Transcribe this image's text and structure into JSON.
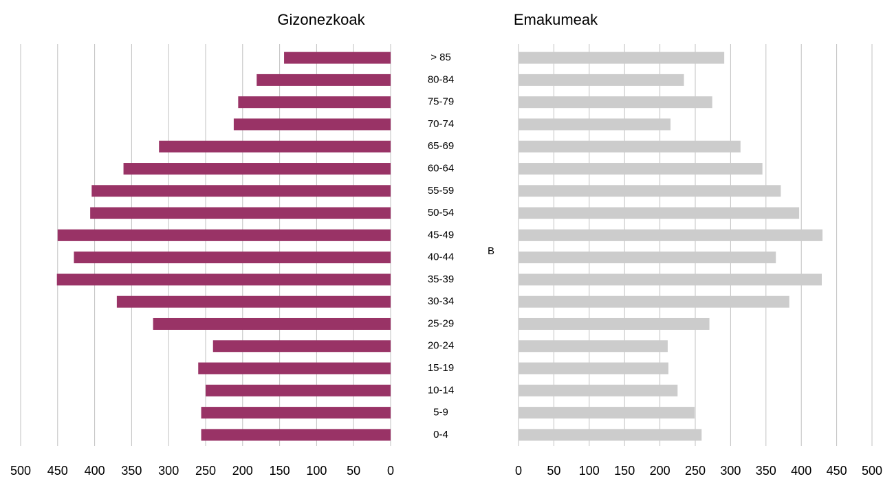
{
  "chart_data": [
    {
      "type": "bar",
      "orientation": "horizontal",
      "title": "Gizonezkoak",
      "xaxis_reversed": true,
      "categories": [
        "0-4",
        "5-9",
        "10-14",
        "15-19",
        "20-24",
        "25-29",
        "30-34",
        "35-39",
        "40-44",
        "45-49",
        "50-54",
        "55-59",
        "60-64",
        "65-69",
        "70-74",
        "75-79",
        "80-84",
        "> 85"
      ],
      "values": [
        256,
        256,
        250,
        260,
        240,
        321,
        370,
        451,
        428,
        450,
        406,
        404,
        361,
        313,
        212,
        206,
        181,
        144
      ],
      "color": "#993366",
      "xlim": [
        0,
        500
      ],
      "xticks": [
        0,
        50,
        100,
        150,
        200,
        250,
        300,
        350,
        400,
        450,
        500
      ],
      "grid": true
    },
    {
      "type": "bar",
      "orientation": "horizontal",
      "title": "Emakumeak",
      "annotation": "B",
      "values": [
        259,
        249,
        225,
        212,
        211,
        270,
        383,
        429,
        364,
        430,
        397,
        371,
        345,
        314,
        215,
        274,
        234,
        291
      ],
      "color": "#cccccc",
      "xlim": [
        0,
        500
      ],
      "xticks": [
        0,
        50,
        100,
        150,
        200,
        250,
        300,
        350,
        400,
        450,
        500
      ],
      "grid": true
    }
  ]
}
